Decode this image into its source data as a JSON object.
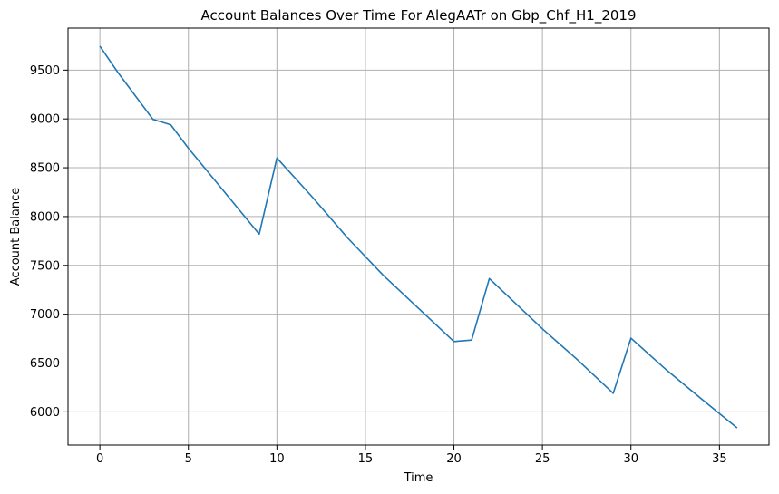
{
  "chart_data": {
    "type": "line",
    "title": "Account Balances Over Time For AlegAATr on Gbp_Chf_H1_2019",
    "xlabel": "Time",
    "ylabel": "Account Balance",
    "xlim": [
      -1.8,
      37.8
    ],
    "ylim": [
      5660,
      9930
    ],
    "xticks": [
      0,
      5,
      10,
      15,
      20,
      25,
      30,
      35
    ],
    "yticks": [
      6000,
      6500,
      7000,
      7500,
      8000,
      8500,
      9000,
      9500
    ],
    "grid": true,
    "line_color": "#1f77b4",
    "grid_color": "#b0b0b0",
    "series": [
      {
        "x": [
          0,
          1,
          3,
          4,
          5,
          7,
          9,
          10,
          12,
          14,
          16,
          18,
          20,
          21,
          22,
          25,
          27,
          29,
          30,
          32,
          34,
          36
        ],
        "values": [
          9745,
          9480,
          8995,
          8940,
          8700,
          8260,
          7820,
          8600,
          8200,
          7780,
          7400,
          7060,
          6720,
          6735,
          7365,
          6850,
          6530,
          6190,
          6755,
          6430,
          6130,
          5835
        ]
      }
    ]
  }
}
